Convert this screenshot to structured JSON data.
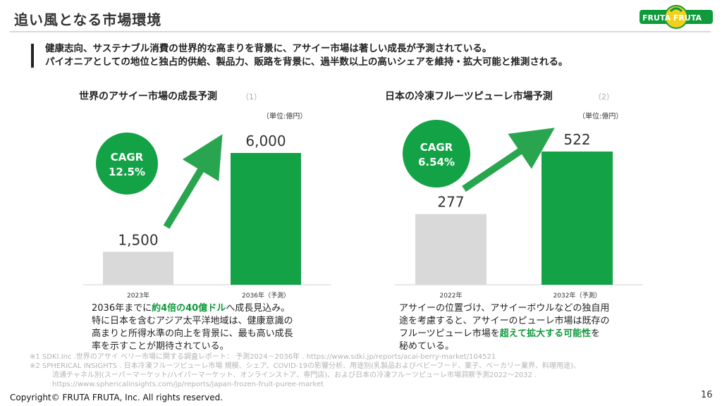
{
  "header": {
    "title": "追い風となる市場環境"
  },
  "logo": {
    "text": "FRUTA FRUTA"
  },
  "lead": {
    "line1": "健康志向、サステナブル消費の世界的な高まりを背景に、アサイー市場は著しい成長が予測されている。",
    "line2": "パイオニアとしての地位と独占的供給、製品力、販路を背景に、過半数以上の高いシェアを維持・拡大可能と推測される。"
  },
  "chart_data": [
    {
      "type": "bar",
      "title": "世界のアサイー市場の成長予測",
      "note": "（1）",
      "unit": "（単位:億円）",
      "categories": [
        "2023年",
        "2036年（予測）"
      ],
      "values": [
        1500,
        6000
      ],
      "value_labels": [
        "1,500",
        "6,000"
      ],
      "cagr_label": "CAGR",
      "cagr_value": "12.5%",
      "colors": [
        "#d9d9d9",
        "#13a245"
      ]
    },
    {
      "type": "bar",
      "title": "日本の冷凍フルーツピューレ市場予測",
      "note": "（2）",
      "unit": "（単位:億円）",
      "categories": [
        "2022年",
        "2032年（予測）"
      ],
      "values": [
        277,
        522
      ],
      "value_labels": [
        "277",
        "522"
      ],
      "cagr_label": "CAGR",
      "cagr_value": "6.54%",
      "colors": [
        "#d9d9d9",
        "#13a245"
      ]
    }
  ],
  "left_desc": {
    "pre": "2036年までに",
    "highlight": "約4倍の40億ドル",
    "post": "へ成長見込み。",
    "line2": "特に日本を含むアジア太平洋地域は、健康意識の",
    "line3": "高まりと所得水準の向上を背景に、最も高い成長",
    "line4": "率を示すことが期待されている。"
  },
  "right_desc": {
    "line1": "アサイーの位置づけ、アサイーボウルなどの独自用",
    "line2": "途を考慮すると、アサイーのピューレ市場は既存の",
    "pre": "フルーツピューレ市場を",
    "highlight": "超えて拡大する可能性",
    "post": "を",
    "line4": "秘めている。"
  },
  "footnotes": {
    "n1": "※1  SDKI.Inc .世界のアサイ ベリー市場に関する調査レポート： 予測2024－2036年 . https://www.sdki.jp/reports/acai-berry-market/104521",
    "n2": "※2  SPHERICAL INSIGHTS . 日本冷凍フルーツピューレ市場 規模、シェア、COVID-19の影響分析、用途別(乳製品およびベビーフード、菓子、ベーカリー業界、料理用途)、",
    "n3": "流通チャネル別(スーパーマーケット/ハイパーマーケット、オンラインストア、専門店)、および日本の冷凍フルーツピューレ市場洞察予測2022～2032 .",
    "n4": "https://www.sphericalinsights.com/jp/reports/japan-frozen-fruit-puree-market"
  },
  "footer": {
    "copyright": "Copyright© FRUTA FRUTA, Inc. All rights reserved.",
    "page": "16"
  }
}
